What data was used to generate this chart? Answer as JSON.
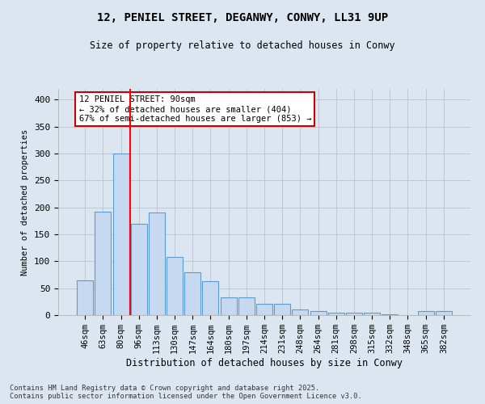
{
  "title1": "12, PENIEL STREET, DEGANWY, CONWY, LL31 9UP",
  "title2": "Size of property relative to detached houses in Conwy",
  "xlabel": "Distribution of detached houses by size in Conwy",
  "ylabel": "Number of detached properties",
  "categories": [
    "46sqm",
    "63sqm",
    "80sqm",
    "96sqm",
    "113sqm",
    "130sqm",
    "147sqm",
    "164sqm",
    "180sqm",
    "197sqm",
    "214sqm",
    "231sqm",
    "248sqm",
    "264sqm",
    "281sqm",
    "298sqm",
    "315sqm",
    "332sqm",
    "348sqm",
    "365sqm",
    "382sqm"
  ],
  "values": [
    65,
    192,
    300,
    170,
    190,
    108,
    80,
    63,
    33,
    33,
    21,
    21,
    10,
    8,
    5,
    5,
    4,
    1,
    0,
    7,
    8
  ],
  "bar_color": "#c6d9f0",
  "bar_edge_color": "#5b9bd5",
  "red_line_x": 2.5,
  "annotation_text": "12 PENIEL STREET: 90sqm\n← 32% of detached houses are smaller (404)\n67% of semi-detached houses are larger (853) →",
  "annotation_box_color": "#ffffff",
  "annotation_box_edge": "#cc0000",
  "grid_color": "#c0c8d8",
  "bg_color": "#dce6f1",
  "plot_bg_color": "#dce6f1",
  "footer_text": "Contains HM Land Registry data © Crown copyright and database right 2025.\nContains public sector information licensed under the Open Government Licence v3.0.",
  "ylim": [
    0,
    420
  ],
  "yticks": [
    0,
    50,
    100,
    150,
    200,
    250,
    300,
    350,
    400
  ]
}
